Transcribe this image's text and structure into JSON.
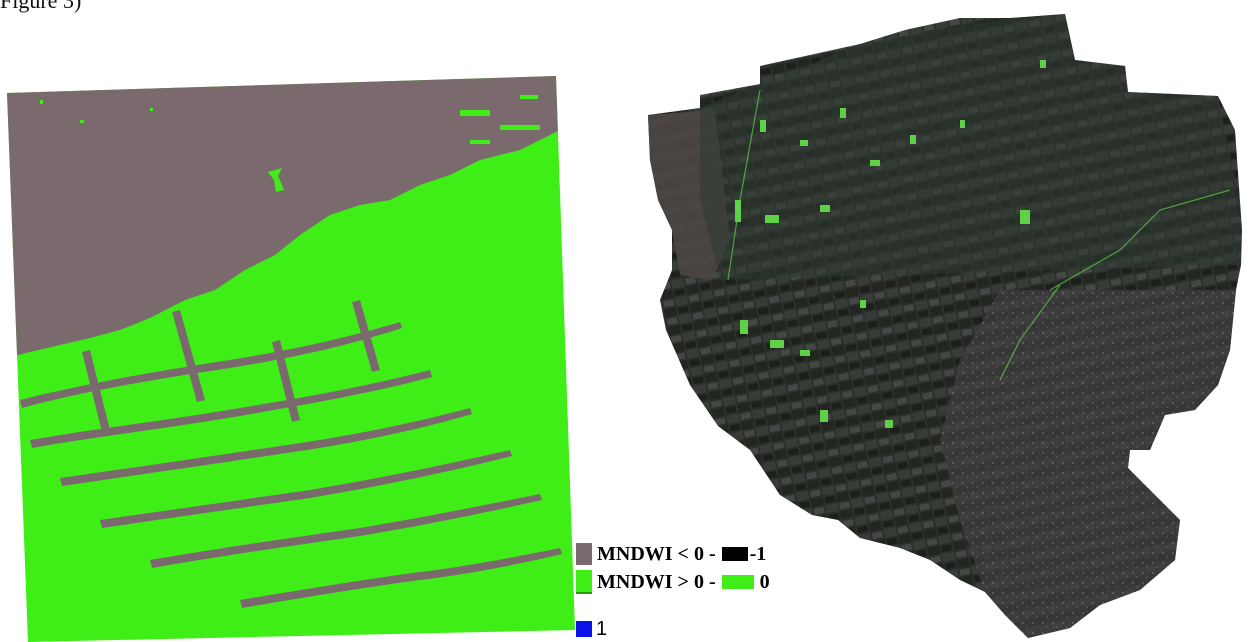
{
  "top_caption": "Figure 3)",
  "colors": {
    "mndwi_negative": "#7a6a6d",
    "mndwi_positive": "#40ee17",
    "legend_black": "#000000",
    "legend_blue": "#0b12e6",
    "satellite_dark": "#2c302d",
    "satellite_field_green": "#5ed146"
  },
  "legend": {
    "row1_text": "MNDWI < 0 -",
    "row1_value": "-1",
    "row2_text": "MNDWI > 0 -",
    "row2_value": "0",
    "row3_value": "1"
  },
  "maps": {
    "left": {
      "classes": [
        "MNDWI < 0",
        "MNDWI > 0"
      ]
    },
    "right": {
      "type": "satellite-imagery",
      "highlight": "water-fields"
    }
  }
}
